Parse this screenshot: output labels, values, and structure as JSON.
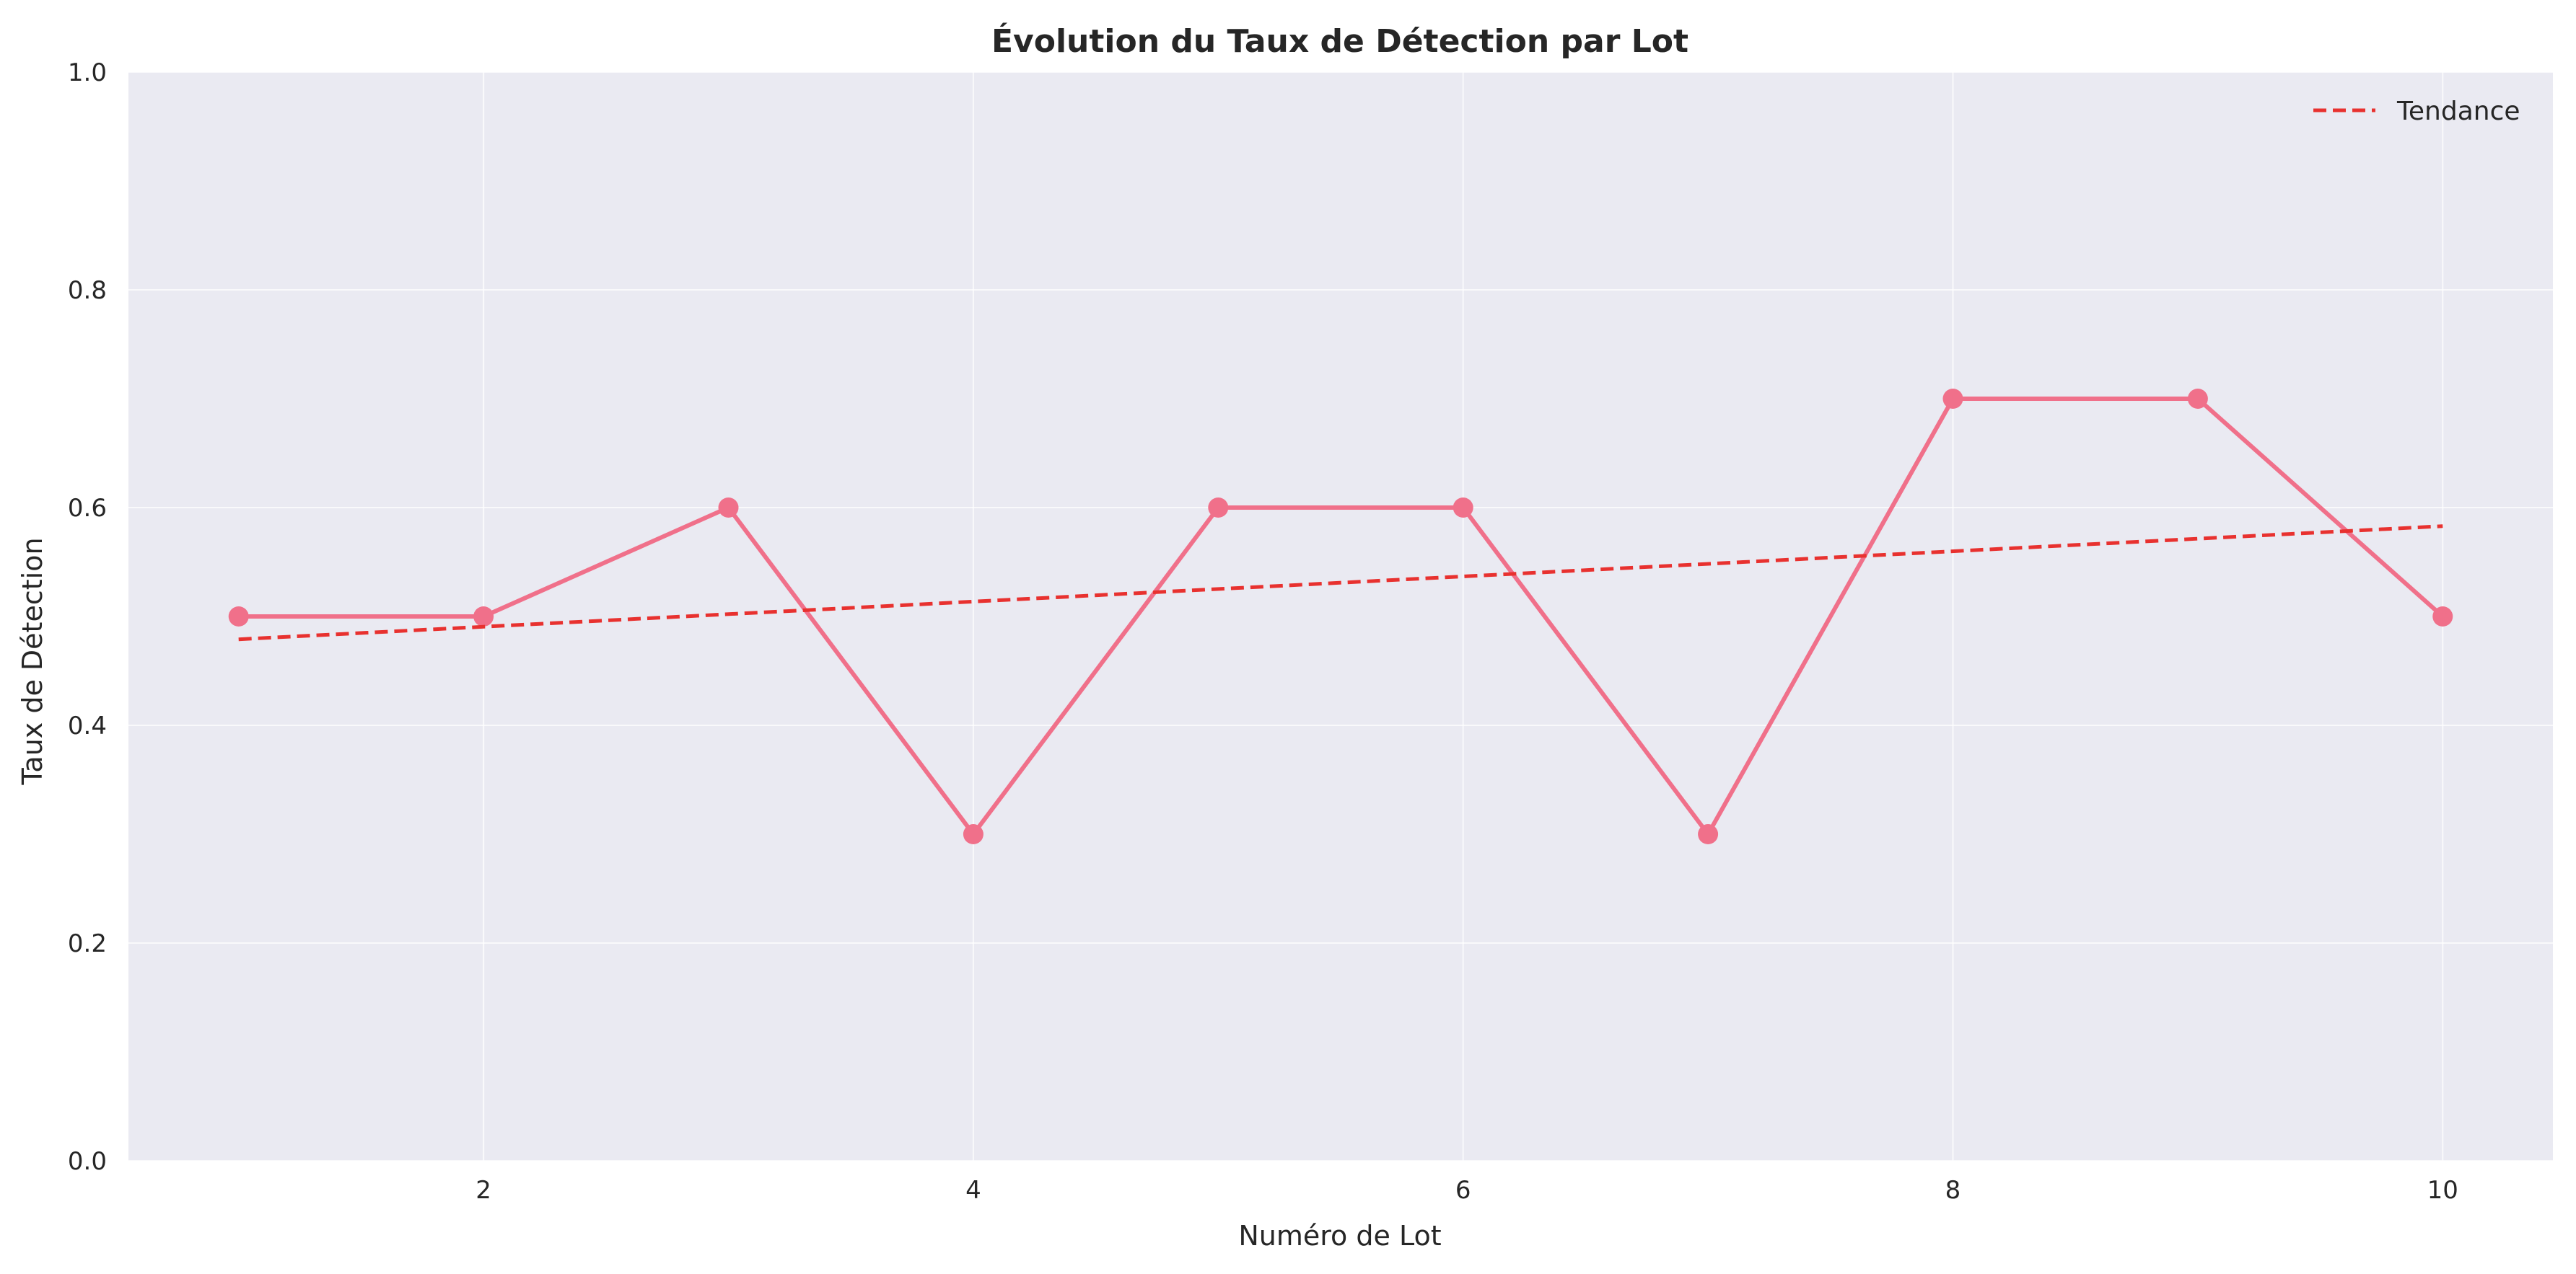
{
  "chart_data": {
    "type": "line",
    "title": "Évolution du Taux de Détection par Lot",
    "xlabel": "Numéro de Lot",
    "ylabel": "Taux de Détection",
    "xlim": [
      0.55,
      10.45
    ],
    "ylim": [
      0,
      1
    ],
    "x_ticks": [
      2,
      4,
      6,
      8,
      10
    ],
    "y_ticks": [
      0.0,
      0.2,
      0.4,
      0.6,
      0.8,
      1.0
    ],
    "y_tick_labels": [
      "0.0",
      "0.2",
      "0.4",
      "0.6",
      "0.8",
      "1.0"
    ],
    "grid": true,
    "legend_position": "top-right",
    "series": [
      {
        "x": [
          1,
          2,
          3,
          4,
          5,
          6,
          7,
          8,
          9,
          10
        ],
        "values": [
          0.5,
          0.5,
          0.6,
          0.3,
          0.6,
          0.6,
          0.3,
          0.7,
          0.7,
          0.5
        ],
        "color": "#f0708a",
        "style": "solid",
        "markers": true
      },
      {
        "name": "Tendance",
        "x": [
          1,
          10
        ],
        "values": [
          0.479,
          0.583
        ],
        "color": "#e8312f",
        "style": "dashed",
        "markers": false
      }
    ],
    "plot_background": "#eaeaf2"
  }
}
